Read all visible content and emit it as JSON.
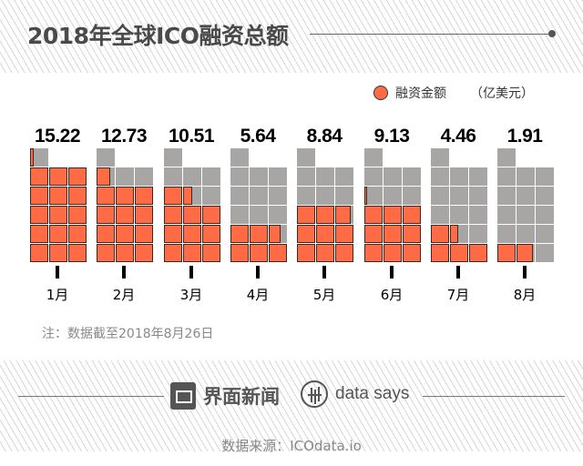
{
  "header": {
    "title": "2018年全球ICO融资总额"
  },
  "legend": {
    "label": "融资金额",
    "unit": "（亿美元）",
    "color": "#ff6b45"
  },
  "chart_data": {
    "type": "waffle",
    "title": "2018年全球ICO融资总额",
    "unit": "亿美元",
    "categories": [
      "1月",
      "2月",
      "3月",
      "4月",
      "5月",
      "6月",
      "7月",
      "8月"
    ],
    "values": [
      15.22,
      12.73,
      10.51,
      5.64,
      8.84,
      9.13,
      4.46,
      1.91
    ],
    "value_labels": [
      "15.22",
      "12.73",
      "10.51",
      "5.64",
      "8.84",
      "9.13",
      "4.46",
      "1.91"
    ],
    "cells_per_month": 16,
    "unit_per_cell": 1,
    "fill_color": "#ff6b45",
    "empty_color": "#a8a6a5"
  },
  "note": "注：数据截至2018年8月26日",
  "footer": {
    "brand1": "界面新闻",
    "brand2": "data says",
    "source": "数据来源：ICOdata.io"
  }
}
